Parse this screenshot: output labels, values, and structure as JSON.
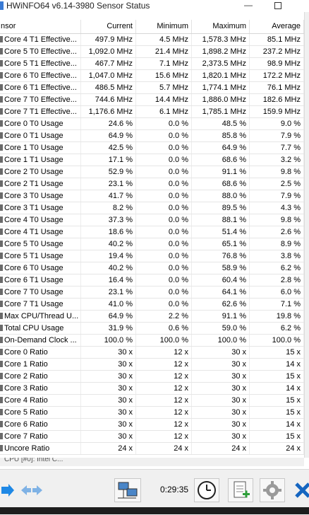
{
  "window": {
    "title": "HWiNFO64 v6.14-3980 Sensor Status",
    "minimize_glyph": "—",
    "close_glyph": ""
  },
  "columns": [
    "nsor",
    "Current",
    "Minimum",
    "Maximum",
    "Average"
  ],
  "rows": [
    [
      "Core 4 T1 Effective...",
      "497.9 MHz",
      "4.5 MHz",
      "1,578.3 MHz",
      "85.1 MHz"
    ],
    [
      "Core 5 T0 Effective...",
      "1,092.0 MHz",
      "21.4 MHz",
      "1,898.2 MHz",
      "237.2 MHz"
    ],
    [
      "Core 5 T1 Effective...",
      "467.7 MHz",
      "7.1 MHz",
      "2,373.5 MHz",
      "98.9 MHz"
    ],
    [
      "Core 6 T0 Effective...",
      "1,047.0 MHz",
      "15.6 MHz",
      "1,820.1 MHz",
      "172.2 MHz"
    ],
    [
      "Core 6 T1 Effective...",
      "486.5 MHz",
      "5.7 MHz",
      "1,774.1 MHz",
      "76.1 MHz"
    ],
    [
      "Core 7 T0 Effective...",
      "744.6 MHz",
      "14.4 MHz",
      "1,886.0 MHz",
      "182.6 MHz"
    ],
    [
      "Core 7 T1 Effective...",
      "1,176.6 MHz",
      "6.1 MHz",
      "1,785.1 MHz",
      "159.9 MHz"
    ],
    [
      "Core 0 T0 Usage",
      "24.6 %",
      "0.0 %",
      "48.5 %",
      "9.0 %"
    ],
    [
      "Core 0 T1 Usage",
      "64.9 %",
      "0.0 %",
      "85.8 %",
      "7.9 %"
    ],
    [
      "Core 1 T0 Usage",
      "42.5 %",
      "0.0 %",
      "64.9 %",
      "7.7 %"
    ],
    [
      "Core 1 T1 Usage",
      "17.1 %",
      "0.0 %",
      "68.6 %",
      "3.2 %"
    ],
    [
      "Core 2 T0 Usage",
      "52.9 %",
      "0.0 %",
      "91.1 %",
      "9.8 %"
    ],
    [
      "Core 2 T1 Usage",
      "23.1 %",
      "0.0 %",
      "68.6 %",
      "2.5 %"
    ],
    [
      "Core 3 T0 Usage",
      "41.7 %",
      "0.0 %",
      "88.0 %",
      "7.9 %"
    ],
    [
      "Core 3 T1 Usage",
      "8.2 %",
      "0.0 %",
      "89.5 %",
      "4.3 %"
    ],
    [
      "Core 4 T0 Usage",
      "37.3 %",
      "0.0 %",
      "88.1 %",
      "9.8 %"
    ],
    [
      "Core 4 T1 Usage",
      "18.6 %",
      "0.0 %",
      "51.4 %",
      "2.6 %"
    ],
    [
      "Core 5 T0 Usage",
      "40.2 %",
      "0.0 %",
      "65.1 %",
      "8.9 %"
    ],
    [
      "Core 5 T1 Usage",
      "19.4 %",
      "0.0 %",
      "76.8 %",
      "3.8 %"
    ],
    [
      "Core 6 T0 Usage",
      "40.2 %",
      "0.0 %",
      "58.9 %",
      "6.2 %"
    ],
    [
      "Core 6 T1 Usage",
      "16.4 %",
      "0.0 %",
      "60.4 %",
      "2.8 %"
    ],
    [
      "Core 7 T0 Usage",
      "23.1 %",
      "0.0 %",
      "64.1 %",
      "6.0 %"
    ],
    [
      "Core 7 T1 Usage",
      "41.0 %",
      "0.0 %",
      "62.6 %",
      "7.1 %"
    ],
    [
      "Max CPU/Thread U...",
      "64.9 %",
      "2.2 %",
      "91.1 %",
      "19.8 %"
    ],
    [
      "Total CPU Usage",
      "31.9 %",
      "0.6 %",
      "59.0 %",
      "6.2 %"
    ],
    [
      "On-Demand Clock ...",
      "100.0 %",
      "100.0 %",
      "100.0 %",
      "100.0 %"
    ],
    [
      "Core 0 Ratio",
      "30 x",
      "12 x",
      "30 x",
      "15 x"
    ],
    [
      "Core 1 Ratio",
      "30 x",
      "12 x",
      "30 x",
      "14 x"
    ],
    [
      "Core 2 Ratio",
      "30 x",
      "12 x",
      "30 x",
      "15 x"
    ],
    [
      "Core 3 Ratio",
      "30 x",
      "12 x",
      "30 x",
      "14 x"
    ],
    [
      "Core 4 Ratio",
      "30 x",
      "12 x",
      "30 x",
      "15 x"
    ],
    [
      "Core 5 Ratio",
      "30 x",
      "12 x",
      "30 x",
      "15 x"
    ],
    [
      "Core 6 Ratio",
      "30 x",
      "12 x",
      "30 x",
      "14 x"
    ],
    [
      "Core 7 Ratio",
      "30 x",
      "12 x",
      "30 x",
      "15 x"
    ],
    [
      "Uncore Ratio",
      "24 x",
      "24 x",
      "24 x",
      "24 x"
    ]
  ],
  "partial_group_label": "CPU [#0]: Intel C...",
  "statusbar": {
    "elapsed": "0:29:35",
    "buttons": [
      "nav-forward-icon",
      "nav-arrows-icon",
      "network-icon",
      "clock-icon",
      "add-report-icon",
      "settings-icon",
      "close-icon"
    ]
  },
  "colors": {
    "accent": "#1e88e5",
    "close_x": "#1565c0",
    "row_icon": "#6a6a6a"
  }
}
